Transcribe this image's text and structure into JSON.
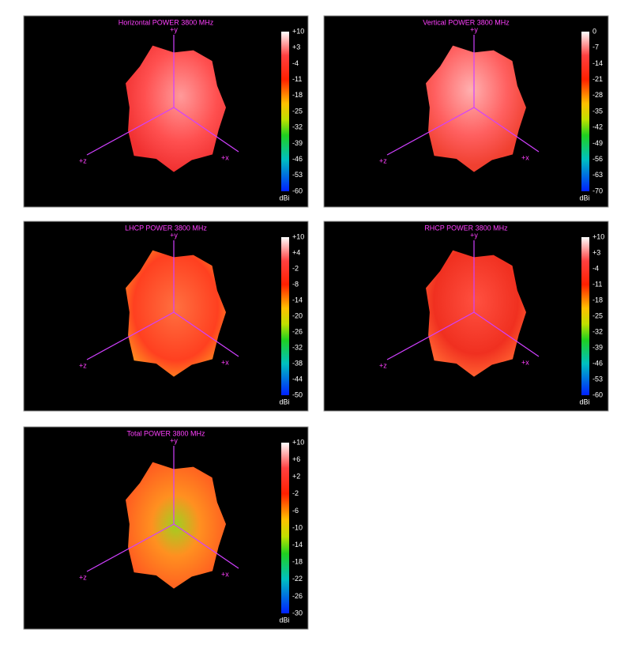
{
  "panels": [
    {
      "title": "Horizontal POWER 3800  MHz",
      "axes": {
        "y": "+y",
        "x": "+x",
        "z": "+z"
      },
      "ticks": [
        "+10",
        "+3",
        "-4",
        "-11",
        "-18",
        "-25",
        "-32",
        "-39",
        "-46",
        "-53",
        "-60"
      ],
      "unit": "dBi"
    },
    {
      "title": "Vertical POWER 3800  MHz",
      "axes": {
        "y": "+y",
        "x": "+x",
        "z": "+z"
      },
      "ticks": [
        "0",
        "-7",
        "-14",
        "-21",
        "-28",
        "-35",
        "-42",
        "-49",
        "-56",
        "-63",
        "-70"
      ],
      "unit": "dBi"
    },
    {
      "title": "LHCP POWER 3800  MHz",
      "axes": {
        "y": "+y",
        "x": "+x",
        "z": "+z"
      },
      "ticks": [
        "+10",
        "+4",
        "-2",
        "-8",
        "-14",
        "-20",
        "-26",
        "-32",
        "-38",
        "-44",
        "-50"
      ],
      "unit": "dBi"
    },
    {
      "title": "RHCP POWER 3800  MHz",
      "axes": {
        "y": "+y",
        "x": "+x",
        "z": "+z"
      },
      "ticks": [
        "+10",
        "+3",
        "-4",
        "-11",
        "-18",
        "-25",
        "-32",
        "-39",
        "-46",
        "-53",
        "-60"
      ],
      "unit": "dBi"
    },
    {
      "title": "Total POWER 3800  MHz",
      "axes": {
        "y": "+y",
        "x": "+x",
        "z": "+z"
      },
      "ticks": [
        "+10",
        "+6",
        "+2",
        "-2",
        "-6",
        "-10",
        "-14",
        "-18",
        "-22",
        "-26",
        "-30"
      ],
      "unit": "dBi"
    }
  ]
}
